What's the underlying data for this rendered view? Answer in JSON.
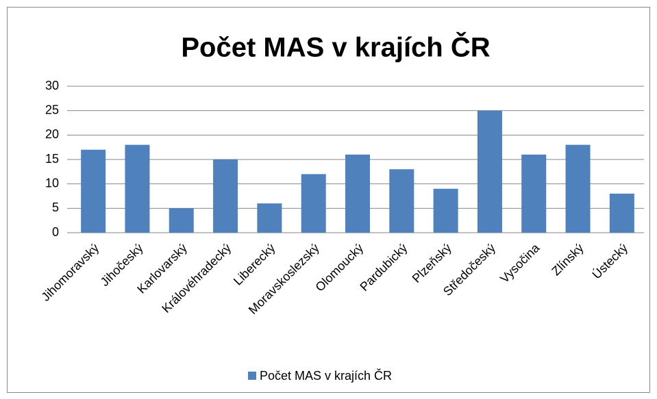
{
  "chart_data": {
    "type": "bar",
    "title": "Počet MAS v krajích ČR",
    "categories": [
      "Jihomoravský",
      "Jihočeský",
      "Karlovarský",
      "Královéhradecký",
      "Liberecký",
      "Moravskoslezský",
      "Olomoucký",
      "Pardubický",
      "Plzeňský",
      "Středočeský",
      "Vysočina",
      "Zlínský",
      "Ústecký"
    ],
    "series": [
      {
        "name": "Počet MAS v krajích ČR",
        "color": "#4f81bd",
        "values": [
          17,
          18,
          5,
          15,
          6,
          12,
          16,
          13,
          9,
          25,
          16,
          18,
          8
        ]
      }
    ],
    "ylim": [
      0,
      30
    ],
    "yticks": [
      0,
      5,
      10,
      15,
      20,
      25,
      30
    ],
    "grid": true,
    "legend": "bottom"
  }
}
